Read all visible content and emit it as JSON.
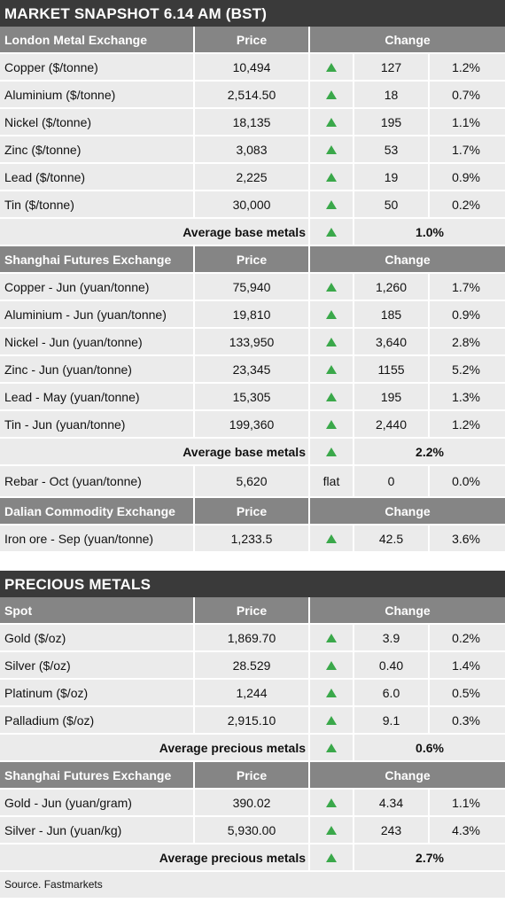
{
  "base_title": "MARKET SNAPSHOT 6.14 AM (BST)",
  "price_header": "Price",
  "change_header": "Change",
  "lme": {
    "header": "London Metal Exchange",
    "rows": [
      {
        "name": "Copper ($/tonne)",
        "price": "10,494",
        "direction": "up",
        "change": "127",
        "pct": "1.2%"
      },
      {
        "name": "Aluminium ($/tonne)",
        "price": "2,514.50",
        "direction": "up",
        "change": "18",
        "pct": "0.7%"
      },
      {
        "name": "Nickel ($/tonne)",
        "price": "18,135",
        "direction": "up",
        "change": "195",
        "pct": "1.1%"
      },
      {
        "name": "Zinc ($/tonne)",
        "price": "3,083",
        "direction": "up",
        "change": "53",
        "pct": "1.7%"
      },
      {
        "name": "Lead ($/tonne)",
        "price": "2,225",
        "direction": "up",
        "change": "19",
        "pct": "0.9%"
      },
      {
        "name": "Tin ($/tonne)",
        "price": "30,000",
        "direction": "up",
        "change": "50",
        "pct": "0.2%"
      }
    ],
    "average": {
      "label": "Average base metals",
      "direction": "up",
      "value": "1.0%"
    }
  },
  "shfe_base": {
    "header": "Shanghai Futures Exchange",
    "rows": [
      {
        "name": "Copper - Jun (yuan/tonne)",
        "price": "75,940",
        "direction": "up",
        "change": "1,260",
        "pct": "1.7%"
      },
      {
        "name": "Aluminium - Jun (yuan/tonne)",
        "price": "19,810",
        "direction": "up",
        "change": "185",
        "pct": "0.9%"
      },
      {
        "name": "Nickel - Jun (yuan/tonne)",
        "price": "133,950",
        "direction": "up",
        "change": "3,640",
        "pct": "2.8%"
      },
      {
        "name": "Zinc - Jun (yuan/tonne)",
        "price": "23,345",
        "direction": "up",
        "change": "1155",
        "pct": "5.2%"
      },
      {
        "name": "Lead - May (yuan/tonne)",
        "price": "15,305",
        "direction": "up",
        "change": "195",
        "pct": "1.3%"
      },
      {
        "name": "Tin - Jun (yuan/tonne)",
        "price": "199,360",
        "direction": "up",
        "change": "2,440",
        "pct": "1.2%"
      }
    ],
    "average": {
      "label": "Average base metals",
      "direction": "up",
      "value": "2.2%"
    },
    "extra_rows": [
      {
        "name": "Rebar - Oct (yuan/tonne)",
        "price": "5,620",
        "direction": "flat",
        "direction_text": "flat",
        "change": "0",
        "pct": "0.0%"
      }
    ]
  },
  "dce": {
    "header": "Dalian Commodity Exchange",
    "rows": [
      {
        "name": "Iron ore - Sep (yuan/tonne)",
        "price": "1,233.5",
        "direction": "up",
        "change": "42.5",
        "pct": "3.6%"
      }
    ]
  },
  "precious_title": "PRECIOUS METALS",
  "spot": {
    "header": "Spot",
    "rows": [
      {
        "name": "Gold ($/oz)",
        "price": "1,869.70",
        "direction": "up",
        "change": "3.9",
        "pct": "0.2%"
      },
      {
        "name": "Silver ($/oz)",
        "price": "28.529",
        "direction": "up",
        "change": "0.40",
        "pct": "1.4%"
      },
      {
        "name": "Platinum ($/oz)",
        "price": "1,244",
        "direction": "up",
        "change": "6.0",
        "pct": "0.5%"
      },
      {
        "name": "Palladium ($/oz)",
        "price": "2,915.10",
        "direction": "up",
        "change": "9.1",
        "pct": "0.3%"
      }
    ],
    "average": {
      "label": "Average precious metals",
      "direction": "up",
      "value": "0.6%"
    }
  },
  "shfe_precious": {
    "header": "Shanghai Futures Exchange",
    "rows": [
      {
        "name": "Gold - Jun (yuan/gram)",
        "price": "390.02",
        "direction": "up",
        "change": "4.34",
        "pct": "1.1%"
      },
      {
        "name": "Silver - Jun (yuan/kg)",
        "price": "5,930.00",
        "direction": "up",
        "change": "243",
        "pct": "4.3%"
      }
    ],
    "average": {
      "label": "Average precious metals",
      "direction": "up",
      "value": "2.7%"
    }
  },
  "source": "Source. Fastmarkets",
  "colors": {
    "up_arrow": "#3aa84a",
    "header_bg": "#858585",
    "title_bg": "#3a3a3a",
    "row_bg": "#ebebeb"
  }
}
